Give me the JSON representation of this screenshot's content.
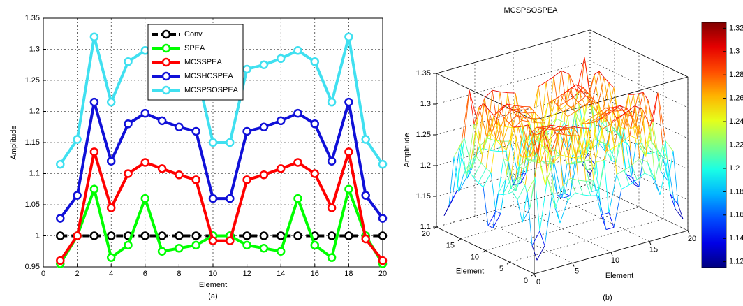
{
  "chart_data": [
    {
      "type": "line",
      "xlabel": "Element",
      "ylabel": "Amplitude",
      "caption": "(a)",
      "x": [
        1,
        2,
        3,
        4,
        5,
        6,
        7,
        8,
        9,
        10,
        11,
        12,
        13,
        14,
        15,
        16,
        17,
        18,
        19,
        20
      ],
      "series": [
        {
          "name": "Conv",
          "color": "#000000",
          "linestyle": "--",
          "values": [
            1,
            1,
            1,
            1,
            1,
            1,
            1,
            1,
            1,
            1,
            1,
            1,
            1,
            1,
            1,
            1,
            1,
            1,
            1,
            1
          ]
        },
        {
          "name": "SPEA",
          "color": "#00ff00",
          "linestyle": "-",
          "values": [
            0.955,
            1.0,
            1.075,
            0.965,
            0.985,
            1.06,
            0.975,
            0.98,
            0.985,
            1.0,
            1.0,
            0.985,
            0.98,
            0.975,
            1.06,
            0.985,
            0.965,
            1.075,
            1.0,
            0.955
          ]
        },
        {
          "name": "MCSSPEA",
          "color": "#ff0000",
          "linestyle": "-",
          "values": [
            0.96,
            1.0,
            1.135,
            1.045,
            1.1,
            1.118,
            1.108,
            1.098,
            1.09,
            0.992,
            0.992,
            1.09,
            1.098,
            1.108,
            1.118,
            1.1,
            1.045,
            1.135,
            0.995,
            0.96
          ]
        },
        {
          "name": "MCSHCSPEA",
          "color": "#1010d8",
          "linestyle": "-",
          "values": [
            1.028,
            1.065,
            1.215,
            1.12,
            1.18,
            1.197,
            1.185,
            1.175,
            1.168,
            1.06,
            1.06,
            1.168,
            1.175,
            1.185,
            1.197,
            1.18,
            1.12,
            1.215,
            1.065,
            1.028
          ]
        },
        {
          "name": "MCSPSOSPEA",
          "color": "#40e0f0",
          "linestyle": "-",
          "values": [
            1.115,
            1.155,
            1.32,
            1.215,
            1.28,
            1.298,
            1.285,
            1.275,
            1.268,
            1.15,
            1.15,
            1.268,
            1.275,
            1.285,
            1.298,
            1.28,
            1.215,
            1.32,
            1.155,
            1.115
          ]
        }
      ],
      "xlim": [
        0,
        20
      ],
      "xticks": [
        0,
        2,
        4,
        6,
        8,
        10,
        12,
        14,
        16,
        18,
        20
      ],
      "ylim": [
        0.95,
        1.35
      ],
      "yticks": [
        0.95,
        1,
        1.05,
        1.1,
        1.15,
        1.2,
        1.25,
        1.3,
        1.35
      ],
      "grid": true,
      "legend": "upper center"
    },
    {
      "type": "surface",
      "title": "MCSPSOSPEA",
      "xlabel": "Element",
      "ylabel": "Element",
      "zlabel": "Amplitude",
      "caption": "(b)",
      "x": [
        1,
        2,
        3,
        4,
        5,
        6,
        7,
        8,
        9,
        10,
        11,
        12,
        13,
        14,
        15,
        16,
        17,
        18,
        19,
        20
      ],
      "y": [
        1,
        2,
        3,
        4,
        5,
        6,
        7,
        8,
        9,
        10,
        11,
        12,
        13,
        14,
        15,
        16,
        17,
        18,
        19,
        20
      ],
      "z": [
        [
          1.115,
          1.135,
          1.218,
          1.165,
          1.198,
          1.207,
          1.2,
          1.195,
          1.192,
          1.133,
          1.133,
          1.192,
          1.195,
          1.2,
          1.207,
          1.198,
          1.165,
          1.218,
          1.135,
          1.115
        ],
        [
          1.135,
          1.155,
          1.238,
          1.185,
          1.218,
          1.227,
          1.22,
          1.215,
          1.212,
          1.153,
          1.153,
          1.212,
          1.215,
          1.22,
          1.227,
          1.218,
          1.185,
          1.238,
          1.155,
          1.135
        ],
        [
          1.218,
          1.238,
          1.32,
          1.268,
          1.3,
          1.309,
          1.303,
          1.298,
          1.294,
          1.235,
          1.235,
          1.294,
          1.298,
          1.303,
          1.309,
          1.3,
          1.268,
          1.32,
          1.238,
          1.218
        ],
        [
          1.165,
          1.185,
          1.268,
          1.215,
          1.248,
          1.257,
          1.25,
          1.245,
          1.242,
          1.183,
          1.183,
          1.242,
          1.245,
          1.25,
          1.257,
          1.248,
          1.215,
          1.268,
          1.185,
          1.165
        ],
        [
          1.198,
          1.218,
          1.3,
          1.248,
          1.28,
          1.289,
          1.283,
          1.278,
          1.274,
          1.215,
          1.215,
          1.274,
          1.278,
          1.283,
          1.289,
          1.28,
          1.248,
          1.3,
          1.218,
          1.198
        ],
        [
          1.207,
          1.227,
          1.309,
          1.257,
          1.289,
          1.298,
          1.292,
          1.287,
          1.283,
          1.224,
          1.224,
          1.283,
          1.287,
          1.292,
          1.298,
          1.289,
          1.257,
          1.309,
          1.227,
          1.207
        ],
        [
          1.2,
          1.22,
          1.303,
          1.25,
          1.283,
          1.292,
          1.285,
          1.28,
          1.277,
          1.218,
          1.218,
          1.277,
          1.28,
          1.285,
          1.292,
          1.283,
          1.25,
          1.303,
          1.22,
          1.2
        ],
        [
          1.195,
          1.215,
          1.298,
          1.245,
          1.278,
          1.287,
          1.28,
          1.275,
          1.272,
          1.213,
          1.213,
          1.272,
          1.275,
          1.28,
          1.287,
          1.278,
          1.245,
          1.298,
          1.215,
          1.195
        ],
        [
          1.192,
          1.212,
          1.294,
          1.242,
          1.274,
          1.283,
          1.277,
          1.272,
          1.268,
          1.209,
          1.209,
          1.268,
          1.272,
          1.277,
          1.283,
          1.274,
          1.242,
          1.294,
          1.212,
          1.192
        ],
        [
          1.133,
          1.153,
          1.235,
          1.183,
          1.215,
          1.224,
          1.218,
          1.213,
          1.209,
          1.15,
          1.15,
          1.209,
          1.213,
          1.218,
          1.224,
          1.215,
          1.183,
          1.235,
          1.153,
          1.133
        ],
        [
          1.133,
          1.153,
          1.235,
          1.183,
          1.215,
          1.224,
          1.218,
          1.213,
          1.209,
          1.15,
          1.15,
          1.209,
          1.213,
          1.218,
          1.224,
          1.215,
          1.183,
          1.235,
          1.153,
          1.133
        ],
        [
          1.192,
          1.212,
          1.294,
          1.242,
          1.274,
          1.283,
          1.277,
          1.272,
          1.268,
          1.209,
          1.209,
          1.268,
          1.272,
          1.277,
          1.283,
          1.274,
          1.242,
          1.294,
          1.212,
          1.192
        ],
        [
          1.195,
          1.215,
          1.298,
          1.245,
          1.278,
          1.287,
          1.28,
          1.275,
          1.272,
          1.213,
          1.213,
          1.272,
          1.275,
          1.28,
          1.287,
          1.278,
          1.245,
          1.298,
          1.215,
          1.195
        ],
        [
          1.2,
          1.22,
          1.303,
          1.25,
          1.283,
          1.292,
          1.285,
          1.28,
          1.277,
          1.218,
          1.218,
          1.277,
          1.28,
          1.285,
          1.292,
          1.283,
          1.25,
          1.303,
          1.22,
          1.2
        ],
        [
          1.207,
          1.227,
          1.309,
          1.257,
          1.289,
          1.298,
          1.292,
          1.287,
          1.283,
          1.224,
          1.224,
          1.283,
          1.287,
          1.292,
          1.298,
          1.289,
          1.257,
          1.309,
          1.227,
          1.207
        ],
        [
          1.198,
          1.218,
          1.3,
          1.248,
          1.28,
          1.289,
          1.283,
          1.278,
          1.274,
          1.215,
          1.215,
          1.274,
          1.278,
          1.283,
          1.289,
          1.28,
          1.248,
          1.3,
          1.218,
          1.198
        ],
        [
          1.165,
          1.185,
          1.268,
          1.215,
          1.248,
          1.257,
          1.25,
          1.245,
          1.242,
          1.183,
          1.183,
          1.242,
          1.245,
          1.25,
          1.257,
          1.248,
          1.215,
          1.268,
          1.185,
          1.165
        ],
        [
          1.218,
          1.238,
          1.32,
          1.268,
          1.3,
          1.309,
          1.303,
          1.298,
          1.294,
          1.235,
          1.235,
          1.294,
          1.298,
          1.303,
          1.309,
          1.3,
          1.268,
          1.32,
          1.238,
          1.218
        ],
        [
          1.135,
          1.155,
          1.238,
          1.185,
          1.218,
          1.227,
          1.22,
          1.215,
          1.212,
          1.153,
          1.153,
          1.212,
          1.215,
          1.22,
          1.227,
          1.218,
          1.185,
          1.238,
          1.155,
          1.135
        ],
        [
          1.115,
          1.135,
          1.218,
          1.165,
          1.198,
          1.207,
          1.2,
          1.195,
          1.192,
          1.133,
          1.133,
          1.192,
          1.195,
          1.2,
          1.207,
          1.198,
          1.165,
          1.218,
          1.135,
          1.115
        ]
      ],
      "xlim": [
        0,
        20
      ],
      "xticks": [
        0,
        5,
        10,
        15,
        20
      ],
      "ylim": [
        0,
        20
      ],
      "yticks": [
        0,
        5,
        10,
        15,
        20
      ],
      "zlim": [
        1.1,
        1.35
      ],
      "zticks": [
        1.1,
        1.15,
        1.2,
        1.25,
        1.3,
        1.35
      ],
      "grid": true,
      "colormap": "jet",
      "colorbar": {
        "clim": [
          1.115,
          1.325
        ],
        "ticks": [
          1.12,
          1.14,
          1.16,
          1.18,
          1.2,
          1.22,
          1.24,
          1.26,
          1.28,
          1.3,
          1.32
        ]
      }
    }
  ]
}
